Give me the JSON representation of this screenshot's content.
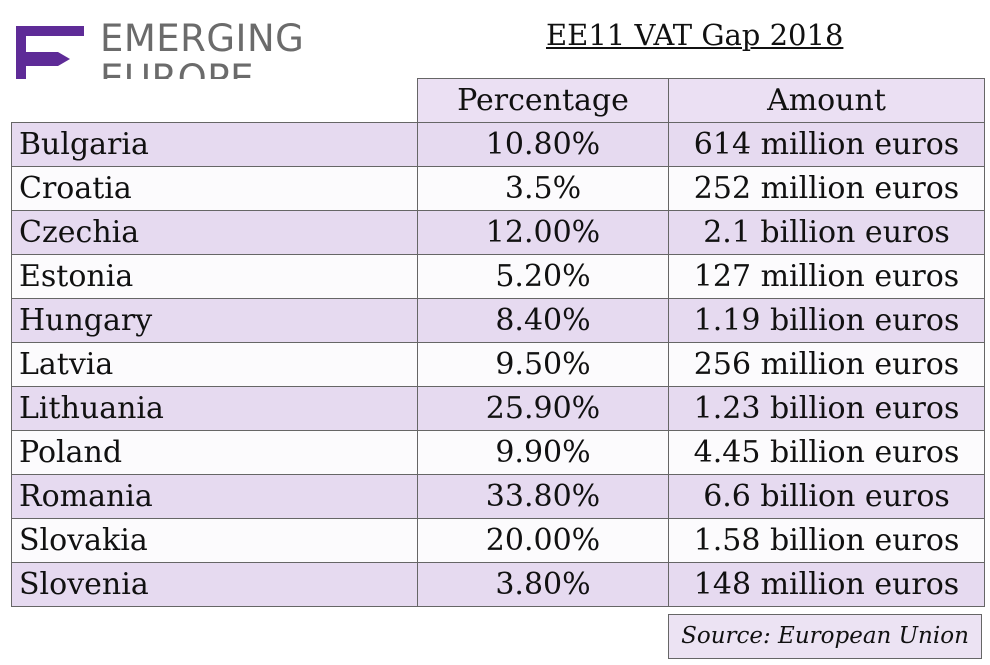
{
  "logo": {
    "line1": "EMERGING",
    "line2": "EUROPE",
    "mark_color": "#5e2b97",
    "text_color": "#6b6b6b"
  },
  "title": "EE11 VAT Gap 2018",
  "columns": [
    "Percentage",
    "Amount"
  ],
  "source": "Source: European Union",
  "colors": {
    "row_shaded": "#e6daf0",
    "row_light": "#fcfbfd",
    "header": "#ebe0f3"
  },
  "chart_data": {
    "type": "table",
    "title": "EE11 VAT Gap 2018",
    "columns": [
      "",
      "Percentage",
      "Amount"
    ],
    "rows": [
      {
        "country": "Bulgaria",
        "percentage": "10.80%",
        "amount": "614 million euros"
      },
      {
        "country": "Croatia",
        "percentage": "3.5%",
        "amount": "252 million euros"
      },
      {
        "country": "Czechia",
        "percentage": "12.00%",
        "amount": "2.1 billion euros"
      },
      {
        "country": "Estonia",
        "percentage": "5.20%",
        "amount": "127 million euros"
      },
      {
        "country": "Hungary",
        "percentage": "8.40%",
        "amount": "1.19 billion euros"
      },
      {
        "country": "Latvia",
        "percentage": "9.50%",
        "amount": "256 million euros"
      },
      {
        "country": "Lithuania",
        "percentage": "25.90%",
        "amount": "1.23 billion euros"
      },
      {
        "country": "Poland",
        "percentage": "9.90%",
        "amount": "4.45 billion euros"
      },
      {
        "country": "Romania",
        "percentage": "33.80%",
        "amount": "6.6 billion euros"
      },
      {
        "country": "Slovakia",
        "percentage": "20.00%",
        "amount": "1.58 billion euros"
      },
      {
        "country": "Slovenia",
        "percentage": "3.80%",
        "amount": "148 million euros"
      }
    ]
  }
}
